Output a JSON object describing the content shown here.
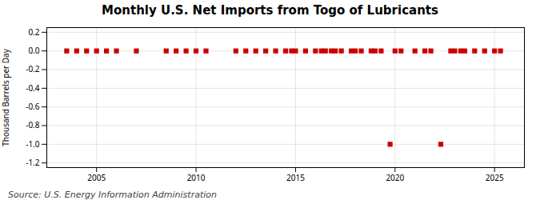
{
  "chart_data": {
    "type": "scatter",
    "title": "Monthly U.S. Net Imports from Togo of Lubricants",
    "ylabel": "Thousand Barrels per Day",
    "caption": "Source: U.S. Energy Information Administration",
    "color": "#cc0000",
    "marker": "square",
    "grid": true,
    "xlim": [
      2002.5,
      2026.5
    ],
    "ylim": [
      -1.25,
      0.25
    ],
    "xticks": [
      2005,
      2010,
      2015,
      2020,
      2025
    ],
    "yticks": [
      0.2,
      {
        "value": 0,
        "label": "0.0"
      },
      -0.2,
      -0.4,
      -0.6,
      -0.8,
      {
        "value": -1,
        "label": "-1.0"
      },
      -1.2
    ],
    "x": [
      2003.5,
      2004.0,
      2004.5,
      2005.0,
      2005.5,
      2006.0,
      2007.0,
      2008.5,
      2009.0,
      2009.5,
      2010.0,
      2010.5,
      2012.0,
      2012.5,
      2013.0,
      2013.5,
      2014.0,
      2014.5,
      2014.8,
      2015.0,
      2015.5,
      2016.0,
      2016.3,
      2016.5,
      2016.8,
      2017.0,
      2017.3,
      2017.8,
      2018.0,
      2018.3,
      2018.8,
      2019.0,
      2019.3,
      2019.75,
      2020.0,
      2020.3,
      2021.0,
      2021.5,
      2021.8,
      2022.3,
      2022.8,
      2023.0,
      2023.3,
      2023.5,
      2024.0,
      2024.5,
      2025.0,
      2025.3
    ],
    "values": [
      0.0,
      0.0,
      0.0,
      0.0,
      0.0,
      0.0,
      0.0,
      0.0,
      0.0,
      0.0,
      0.0,
      0.0,
      0.0,
      0.0,
      0.0,
      0.0,
      0.0,
      0.0,
      0.0,
      0.0,
      0.0,
      0.0,
      0.0,
      0.0,
      0.0,
      0.0,
      0.0,
      0.0,
      0.0,
      0.0,
      0.0,
      0.0,
      0.0,
      -1.0,
      0.0,
      0.0,
      0.0,
      0.0,
      0.0,
      -1.0,
      0.0,
      0.0,
      0.0,
      0.0,
      0.0,
      0.0,
      0.0,
      0.0
    ]
  }
}
